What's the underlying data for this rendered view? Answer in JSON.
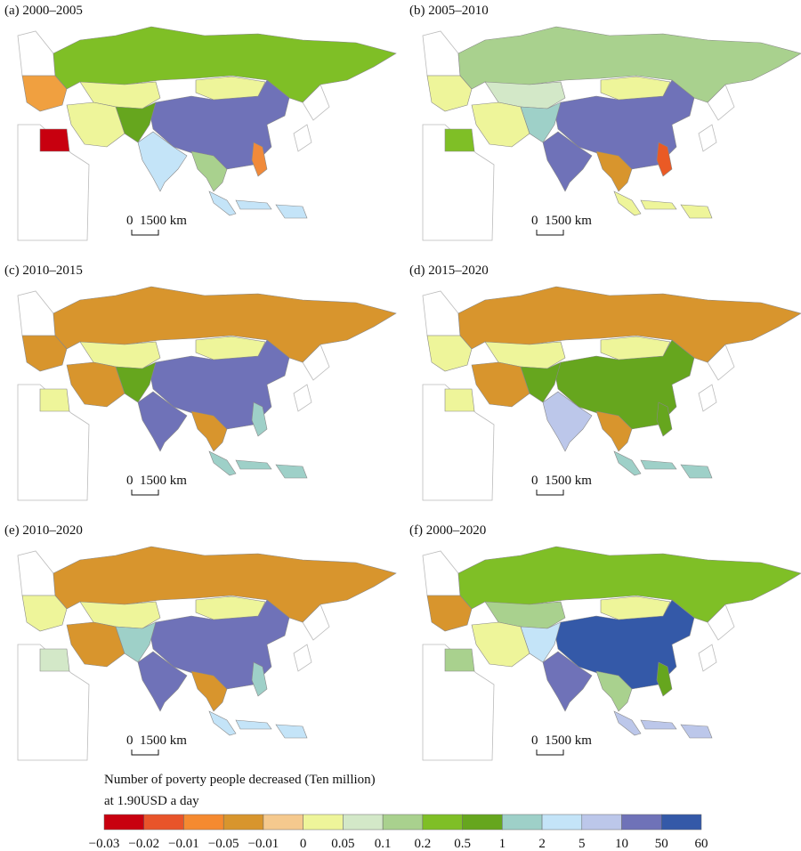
{
  "panels": [
    {
      "title": "(a) 2000–2005",
      "fills": [
        "#7fbf26",
        "#6f72b8",
        "#c4e4f8",
        "#eef59a",
        "#eef59a",
        "#a9d18e",
        "#c4e4f8",
        "#c8000f",
        "#f0a040",
        "#eef59a",
        "#f08a3a",
        "#66a61e"
      ]
    },
    {
      "title": "(b) 2005–2010",
      "fills": [
        "#a9d18e",
        "#6f72b8",
        "#6f72b8",
        "#d3e8c8",
        "#eef59a",
        "#d8952d",
        "#eef59a",
        "#7fbf26",
        "#eef59a",
        "#eef59a",
        "#ea5a25",
        "#9ed0c8"
      ]
    },
    {
      "title": "(c) 2010–2015",
      "fills": [
        "#d8952d",
        "#6f72b8",
        "#6f72b8",
        "#eef59a",
        "#eef59a",
        "#d8952d",
        "#9ed0c8",
        "#eef59a",
        "#d8952d",
        "#d8952d",
        "#9ed0c8",
        "#66a61e"
      ]
    },
    {
      "title": "(d) 2015–2020",
      "fills": [
        "#d8952d",
        "#66a61e",
        "#bcc7ea",
        "#eef59a",
        "#eef59a",
        "#d8952d",
        "#9ed0c8",
        "#eef59a",
        "#eef59a",
        "#d8952d",
        "#66a61e",
        "#66a61e"
      ]
    },
    {
      "title": "(e) 2010–2020",
      "fills": [
        "#d8952d",
        "#6f72b8",
        "#6f72b8",
        "#eef59a",
        "#eef59a",
        "#d8952d",
        "#c4e4f8",
        "#d3e8c8",
        "#eef59a",
        "#d8952d",
        "#9ed0c8",
        "#9ed0c8"
      ]
    },
    {
      "title": "(f) 2000–2020",
      "fills": [
        "#7fbf26",
        "#3459a8",
        "#6f72b8",
        "#a9d18e",
        "#eef59a",
        "#a9d18e",
        "#bcc7ea",
        "#a9d18e",
        "#d8952d",
        "#eef59a",
        "#66a61e",
        "#c4e4f8"
      ]
    }
  ],
  "scale": {
    "zero": "0",
    "label": "1500 km"
  },
  "legend": {
    "title": [
      "Number of poverty people decreased (Ten million)",
      "at 1.90USD a day"
    ],
    "colors": [
      "#c8000f",
      "#e8542a",
      "#f58a30",
      "#d8952d",
      "#f5c98e",
      "#eef59a",
      "#d3e8c8",
      "#a9d18e",
      "#7fbf26",
      "#66a61e",
      "#9ed0c8",
      "#c4e4f8",
      "#bcc7ea",
      "#6f72b8",
      "#3459a8"
    ],
    "labels": [
      "−0.03",
      "−0.02",
      "−0.01",
      "−0.05",
      "−0.01",
      "0",
      "0.05",
      "0.1",
      "0.2",
      "0.5",
      "1",
      "2",
      "5",
      "10",
      "50",
      "60"
    ]
  }
}
